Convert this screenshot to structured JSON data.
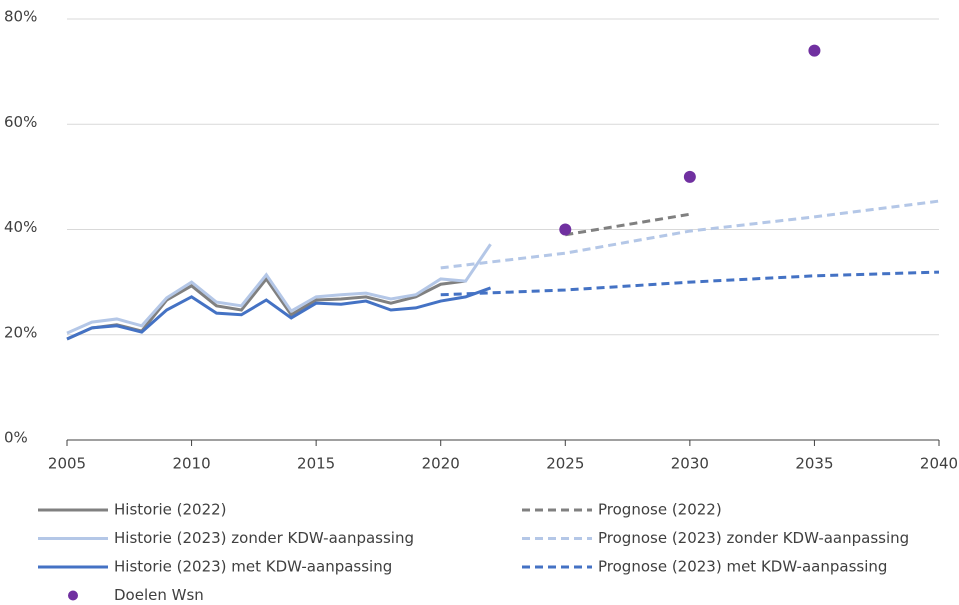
{
  "chart_data": {
    "type": "line",
    "xlim": [
      2005,
      2040
    ],
    "xticks": [
      2005,
      2010,
      2015,
      2020,
      2025,
      2030,
      2035,
      2040
    ],
    "ylim": [
      0,
      80
    ],
    "yticks": [
      {
        "value": 0,
        "label": "0%"
      },
      {
        "value": 20,
        "label": "20%"
      },
      {
        "value": 40,
        "label": "40%"
      },
      {
        "value": 60,
        "label": "60%"
      },
      {
        "value": 80,
        "label": "80%"
      }
    ],
    "grid": true,
    "series": [
      {
        "name": "Historie (2022)",
        "color": "#808080",
        "linestyle": "solid",
        "x": [
          2005,
          2006,
          2007,
          2008,
          2009,
          2010,
          2011,
          2012,
          2013,
          2014,
          2015,
          2016,
          2017,
          2018,
          2019,
          2020,
          2021
        ],
        "values": [
          19.2,
          21.3,
          21.9,
          20.7,
          26.6,
          29.3,
          25.5,
          24.7,
          30.6,
          23.8,
          26.6,
          26.8,
          27.2,
          26.0,
          27.2,
          29.6,
          30.2
        ]
      },
      {
        "name": "Prognose (2022)",
        "color": "#808080",
        "linestyle": "dashed",
        "x": [
          2025,
          2030
        ],
        "values": [
          39.0,
          42.9
        ]
      },
      {
        "name": "Historie (2023) zonder KDW-aanpassing",
        "color": "#b4c7e7",
        "linestyle": "solid",
        "x": [
          2005,
          2006,
          2007,
          2008,
          2009,
          2010,
          2011,
          2012,
          2013,
          2014,
          2015,
          2016,
          2017,
          2018,
          2019,
          2020,
          2021,
          2022
        ],
        "values": [
          20.3,
          22.4,
          23.0,
          21.7,
          27.0,
          30.0,
          26.2,
          25.5,
          31.4,
          24.5,
          27.2,
          27.6,
          27.9,
          26.8,
          27.6,
          30.6,
          30.2,
          37.2
        ]
      },
      {
        "name": "Prognose (2023) zonder KDW-aanpassing",
        "color": "#b4c7e7",
        "linestyle": "dashed",
        "x": [
          2020,
          2025,
          2030,
          2035,
          2040
        ],
        "values": [
          32.7,
          35.5,
          39.7,
          42.4,
          45.4
        ]
      },
      {
        "name": "Historie (2023) met KDW-aanpassing",
        "color": "#4472c4",
        "linestyle": "solid",
        "x": [
          2005,
          2006,
          2007,
          2008,
          2009,
          2010,
          2011,
          2012,
          2013,
          2014,
          2015,
          2016,
          2017,
          2018,
          2019,
          2020,
          2021,
          2022
        ],
        "values": [
          19.2,
          21.3,
          21.7,
          20.5,
          24.7,
          27.2,
          24.1,
          23.8,
          26.6,
          23.2,
          26.0,
          25.8,
          26.4,
          24.7,
          25.1,
          26.4,
          27.2,
          28.9
        ]
      },
      {
        "name": "Prognose (2023) met KDW-aanpassing",
        "color": "#4472c4",
        "linestyle": "dashed",
        "x": [
          2020,
          2025,
          2030,
          2035,
          2040
        ],
        "values": [
          27.6,
          28.5,
          30.0,
          31.2,
          31.9
        ]
      },
      {
        "name": "Doelen Wsn",
        "color": "#7030a0",
        "type": "scatter",
        "x": [
          2025,
          2030,
          2035
        ],
        "values": [
          40,
          50,
          74
        ]
      }
    ]
  }
}
